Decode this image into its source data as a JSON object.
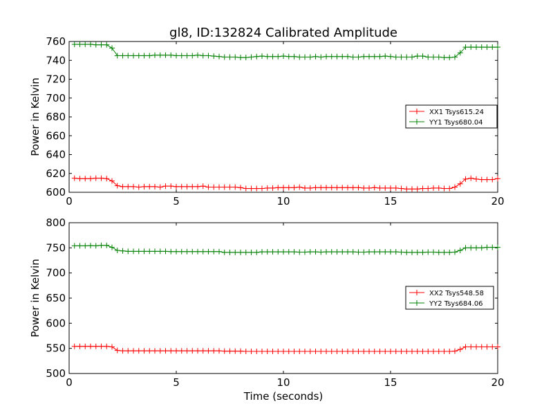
{
  "title": "gl8, ID:132824 Calibrated Amplitude",
  "chart_data": [
    {
      "type": "line",
      "title": "gl8, ID:132824 Calibrated Amplitude",
      "xlabel": "",
      "ylabel": "Power in Kelvin",
      "xlim": [
        0,
        20
      ],
      "ylim": [
        600,
        760
      ],
      "xticks": [
        "0",
        "5",
        "10",
        "15",
        "20"
      ],
      "yticks": [
        "600",
        "620",
        "640",
        "660",
        "680",
        "700",
        "720",
        "740",
        "760"
      ],
      "legend_position": "center-right",
      "series": [
        {
          "name": "XX1 Tsys615.24",
          "color": "#ff0000",
          "x": [
            0.25,
            0.5,
            0.75,
            1.0,
            1.25,
            1.5,
            1.75,
            2.0,
            2.25,
            2.5,
            2.75,
            3.0,
            3.25,
            3.5,
            3.75,
            4.0,
            4.25,
            4.5,
            4.75,
            5.0,
            5.25,
            5.5,
            5.75,
            6.0,
            6.25,
            6.5,
            6.75,
            7.0,
            7.25,
            7.5,
            7.75,
            8.0,
            8.25,
            8.5,
            8.75,
            9.0,
            9.25,
            9.5,
            9.75,
            10.0,
            10.25,
            10.5,
            10.75,
            11.0,
            11.25,
            11.5,
            11.75,
            12.0,
            12.25,
            12.5,
            12.75,
            13.0,
            13.25,
            13.5,
            13.75,
            14.0,
            14.25,
            14.5,
            14.75,
            15.0,
            15.25,
            15.5,
            15.75,
            16.0,
            16.25,
            16.5,
            16.75,
            17.0,
            17.25,
            17.5,
            17.75,
            18.0,
            18.25,
            18.5,
            18.75,
            19.0,
            19.25,
            19.5,
            19.75,
            20.0
          ],
          "y": [
            615,
            614.5,
            614.5,
            614.5,
            615,
            615,
            614.5,
            612,
            607,
            606,
            606,
            606,
            605.5,
            606,
            606,
            606,
            605.5,
            606.5,
            606.5,
            606,
            606,
            606,
            606,
            606,
            606.5,
            605.5,
            605.5,
            605.5,
            605.5,
            605.5,
            605.5,
            605,
            604,
            604,
            604,
            604,
            604.5,
            604.5,
            605,
            605,
            605,
            605,
            605.5,
            604.5,
            604.5,
            605,
            605,
            605,
            605,
            605,
            605,
            605,
            605,
            605,
            604.5,
            604.5,
            605,
            604.5,
            604.5,
            604.5,
            604.5,
            604,
            603.5,
            603.5,
            603.5,
            604,
            604,
            604.5,
            604.5,
            604,
            604,
            605.5,
            609,
            614,
            615,
            614,
            613.5,
            613.5,
            613.5,
            614.5
          ]
        },
        {
          "name": "YY1 Tsys680.04",
          "color": "#008000",
          "x": [
            0.25,
            0.5,
            0.75,
            1.0,
            1.25,
            1.5,
            1.75,
            2.0,
            2.25,
            2.5,
            2.75,
            3.0,
            3.25,
            3.5,
            3.75,
            4.0,
            4.25,
            4.5,
            4.75,
            5.0,
            5.25,
            5.5,
            5.75,
            6.0,
            6.25,
            6.5,
            6.75,
            7.0,
            7.25,
            7.5,
            7.75,
            8.0,
            8.25,
            8.5,
            8.75,
            9.0,
            9.25,
            9.5,
            9.75,
            10.0,
            10.25,
            10.5,
            10.75,
            11.0,
            11.25,
            11.5,
            11.75,
            12.0,
            12.25,
            12.5,
            12.75,
            13.0,
            13.25,
            13.5,
            13.75,
            14.0,
            14.25,
            14.5,
            14.75,
            15.0,
            15.25,
            15.5,
            15.75,
            16.0,
            16.25,
            16.5,
            16.75,
            17.0,
            17.25,
            17.5,
            17.75,
            18.0,
            18.25,
            18.5,
            18.75,
            19.0,
            19.25,
            19.5,
            19.75,
            20.0
          ],
          "y": [
            757,
            757,
            757,
            757,
            756.5,
            756.5,
            756.5,
            753,
            745,
            745,
            745,
            745,
            745,
            745,
            745,
            745.5,
            745.5,
            745.5,
            745.5,
            745,
            745,
            745,
            745,
            745.5,
            745,
            745,
            744.5,
            744,
            743.5,
            743.5,
            743.5,
            743,
            743,
            743.5,
            744,
            744.5,
            744,
            744,
            744,
            744.5,
            744,
            744,
            743.5,
            743.5,
            743.5,
            744,
            743.5,
            744,
            744,
            744,
            744,
            744,
            743.5,
            743.5,
            744,
            744,
            744,
            744,
            744.5,
            744,
            743.5,
            743.5,
            743.5,
            743.5,
            744.5,
            744.5,
            743.5,
            743.5,
            743.5,
            743,
            743,
            743.5,
            748,
            754,
            754,
            754,
            754,
            754,
            754,
            754
          ]
        }
      ]
    },
    {
      "type": "line",
      "title": "",
      "xlabel": "Time (seconds)",
      "ylabel": "Power in Kelvin",
      "xlim": [
        0,
        20
      ],
      "ylim": [
        500,
        800
      ],
      "xticks": [
        "0",
        "5",
        "10",
        "15",
        "20"
      ],
      "yticks": [
        "500",
        "550",
        "600",
        "650",
        "700",
        "750",
        "800"
      ],
      "legend_position": "center-right",
      "series": [
        {
          "name": "XX2 Tsys548.58",
          "color": "#ff0000",
          "x": [
            0.25,
            0.5,
            0.75,
            1.0,
            1.25,
            1.5,
            1.75,
            2.0,
            2.25,
            2.5,
            2.75,
            3.0,
            3.25,
            3.5,
            3.75,
            4.0,
            4.25,
            4.5,
            4.75,
            5.0,
            5.25,
            5.5,
            5.75,
            6.0,
            6.25,
            6.5,
            6.75,
            7.0,
            7.25,
            7.5,
            7.75,
            8.0,
            8.25,
            8.5,
            8.75,
            9.0,
            9.25,
            9.5,
            9.75,
            10.0,
            10.25,
            10.5,
            10.75,
            11.0,
            11.25,
            11.5,
            11.75,
            12.0,
            12.25,
            12.5,
            12.75,
            13.0,
            13.25,
            13.5,
            13.75,
            14.0,
            14.25,
            14.5,
            14.75,
            15.0,
            15.25,
            15.5,
            15.75,
            16.0,
            16.25,
            16.5,
            16.75,
            17.0,
            17.25,
            17.5,
            17.75,
            18.0,
            18.25,
            18.5,
            18.75,
            19.0,
            19.25,
            19.5,
            19.75,
            20.0
          ],
          "y": [
            554,
            554,
            554,
            554,
            554,
            554,
            554,
            553,
            546,
            545,
            545,
            545,
            545,
            545,
            545,
            545,
            545,
            545,
            545,
            545,
            545,
            545,
            545,
            545,
            545,
            545,
            545,
            545,
            544.5,
            544.5,
            544.5,
            544.5,
            544,
            544,
            544,
            544,
            544,
            544,
            544,
            544,
            544,
            544,
            544,
            544,
            544,
            544,
            544,
            544,
            544,
            544,
            544,
            544,
            544,
            544,
            544,
            544,
            544,
            544,
            544,
            544,
            544,
            544,
            544,
            544,
            544,
            544,
            544,
            544,
            544,
            544,
            544,
            544.5,
            548,
            553,
            553,
            553,
            553,
            553,
            553,
            553
          ]
        },
        {
          "name": "YY2 Tsys684.06",
          "color": "#008000",
          "x": [
            0.25,
            0.5,
            0.75,
            1.0,
            1.25,
            1.5,
            1.75,
            2.0,
            2.25,
            2.5,
            2.75,
            3.0,
            3.25,
            3.5,
            3.75,
            4.0,
            4.25,
            4.5,
            4.75,
            5.0,
            5.25,
            5.5,
            5.75,
            6.0,
            6.25,
            6.5,
            6.75,
            7.0,
            7.25,
            7.5,
            7.75,
            8.0,
            8.25,
            8.5,
            8.75,
            9.0,
            9.25,
            9.5,
            9.75,
            10.0,
            10.25,
            10.5,
            10.75,
            11.0,
            11.25,
            11.5,
            11.75,
            12.0,
            12.25,
            12.5,
            12.75,
            13.0,
            13.25,
            13.5,
            13.75,
            14.0,
            14.25,
            14.5,
            14.75,
            15.0,
            15.25,
            15.5,
            15.75,
            16.0,
            16.25,
            16.5,
            16.75,
            17.0,
            17.25,
            17.5,
            17.75,
            18.0,
            18.25,
            18.5,
            18.75,
            19.0,
            19.25,
            19.5,
            19.75,
            20.0
          ],
          "y": [
            754,
            754,
            754,
            754.5,
            754,
            755,
            755,
            751,
            745,
            744,
            743,
            743,
            743,
            743,
            743,
            743,
            743,
            743,
            742.5,
            742.5,
            742.5,
            742.5,
            742.5,
            742.5,
            742.5,
            742.5,
            742.5,
            742.5,
            741,
            741,
            741,
            741,
            741,
            741,
            741,
            742,
            742,
            742,
            742,
            742,
            742,
            742,
            741.5,
            741.5,
            742,
            742,
            741.5,
            742,
            742,
            742,
            742,
            742,
            742,
            741.5,
            741.5,
            742,
            742,
            742,
            742,
            742,
            742,
            741.5,
            741,
            741,
            741,
            741,
            741.5,
            741.5,
            741,
            741,
            741,
            741.5,
            745,
            750,
            750,
            750,
            750,
            751,
            751,
            751
          ]
        }
      ]
    }
  ]
}
